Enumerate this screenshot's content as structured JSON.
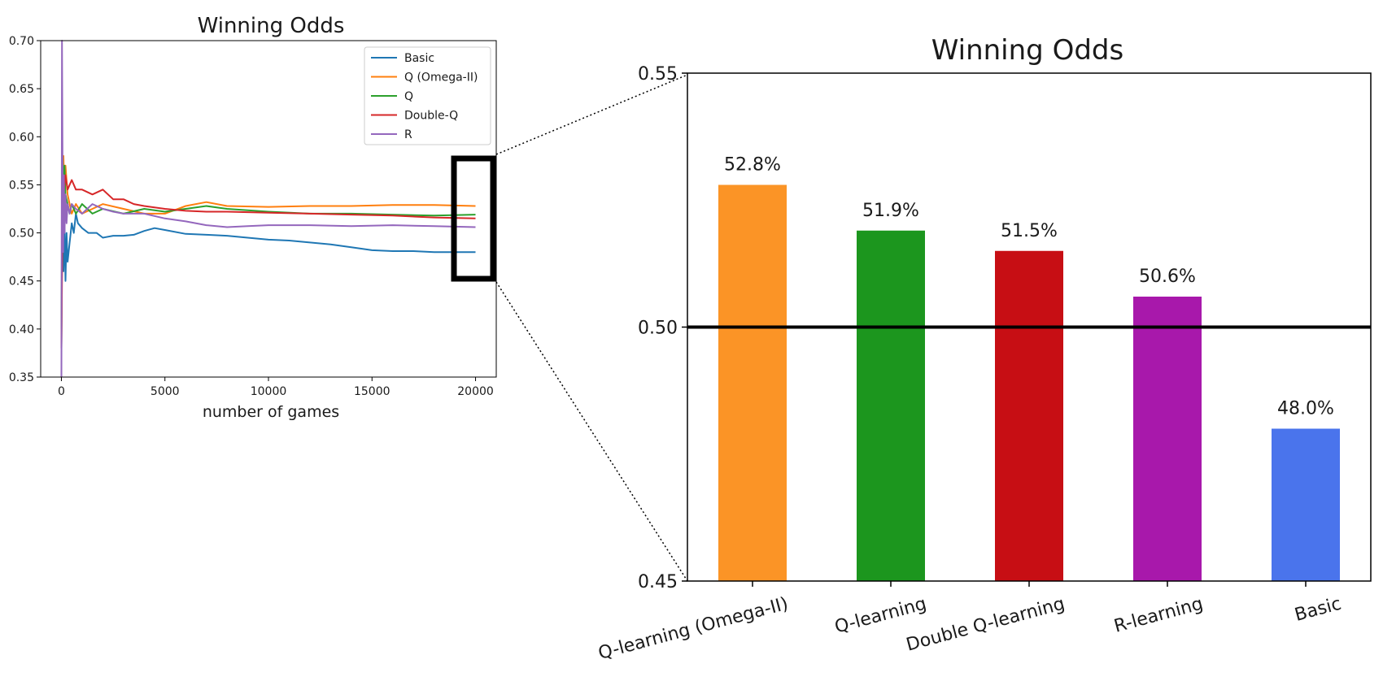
{
  "chart_data": [
    {
      "type": "line",
      "title": "Winning Odds",
      "xlabel": "number of games",
      "ylabel": "",
      "xlim": [
        -1000,
        21000
      ],
      "ylim": [
        0.35,
        0.7
      ],
      "xticks": [
        0,
        5000,
        10000,
        15000,
        20000
      ],
      "yticks": [
        "0.70",
        "0.65",
        "0.60",
        "0.55",
        "0.50",
        "0.45",
        "0.40",
        "0.35"
      ],
      "legend_position": "top-right",
      "grid": false,
      "series": [
        {
          "name": "Basic",
          "color": "#1f77b4",
          "x": [
            0,
            50,
            100,
            150,
            200,
            250,
            300,
            400,
            500,
            600,
            700,
            800,
            1000,
            1300,
            1700,
            2000,
            2500,
            3000,
            3500,
            4000,
            4500,
            5000,
            6000,
            7000,
            8000,
            9000,
            10000,
            11000,
            12000,
            13000,
            14000,
            15000,
            16000,
            17000,
            18000,
            19000,
            20000
          ],
          "y": [
            0.38,
            0.55,
            0.46,
            0.51,
            0.45,
            0.5,
            0.47,
            0.49,
            0.51,
            0.5,
            0.52,
            0.51,
            0.505,
            0.5,
            0.5,
            0.495,
            0.497,
            0.497,
            0.498,
            0.502,
            0.505,
            0.503,
            0.499,
            0.498,
            0.497,
            0.495,
            0.493,
            0.492,
            0.49,
            0.488,
            0.485,
            0.482,
            0.481,
            0.481,
            0.48,
            0.48,
            0.48
          ]
        },
        {
          "name": "Q (Omega-II)",
          "color": "#ff7f0e",
          "x": [
            0,
            50,
            100,
            150,
            200,
            300,
            400,
            500,
            700,
            1000,
            1500,
            2000,
            3000,
            4000,
            5000,
            6000,
            7000,
            8000,
            10000,
            12000,
            14000,
            16000,
            18000,
            20000
          ],
          "y": [
            0.38,
            0.55,
            0.58,
            0.53,
            0.57,
            0.54,
            0.53,
            0.52,
            0.53,
            0.52,
            0.525,
            0.53,
            0.525,
            0.52,
            0.52,
            0.528,
            0.532,
            0.528,
            0.527,
            0.528,
            0.528,
            0.529,
            0.529,
            0.528
          ]
        },
        {
          "name": "Q",
          "color": "#2ca02c",
          "x": [
            0,
            50,
            100,
            150,
            200,
            300,
            400,
            500,
            700,
            1000,
            1500,
            2000,
            3000,
            4000,
            5000,
            6000,
            7000,
            8000,
            10000,
            12000,
            14000,
            16000,
            18000,
            20000
          ],
          "y": [
            0.4,
            0.58,
            0.55,
            0.57,
            0.54,
            0.53,
            0.52,
            0.53,
            0.52,
            0.53,
            0.52,
            0.525,
            0.52,
            0.525,
            0.522,
            0.525,
            0.528,
            0.525,
            0.522,
            0.52,
            0.52,
            0.519,
            0.518,
            0.519
          ]
        },
        {
          "name": "Double-Q",
          "color": "#d62728",
          "x": [
            0,
            50,
            100,
            150,
            200,
            300,
            400,
            500,
            700,
            1000,
            1500,
            2000,
            2500,
            3000,
            3500,
            4000,
            5000,
            6000,
            7000,
            8000,
            10000,
            12000,
            14000,
            16000,
            18000,
            20000
          ],
          "y": [
            0.38,
            0.5,
            0.54,
            0.55,
            0.56,
            0.545,
            0.55,
            0.555,
            0.545,
            0.545,
            0.54,
            0.545,
            0.535,
            0.535,
            0.53,
            0.528,
            0.525,
            0.523,
            0.522,
            0.522,
            0.521,
            0.52,
            0.519,
            0.518,
            0.516,
            0.515
          ]
        },
        {
          "name": "R",
          "color": "#9467bd",
          "x": [
            0,
            30,
            60,
            90,
            120,
            150,
            200,
            250,
            300,
            400,
            500,
            700,
            1000,
            1500,
            2000,
            2500,
            3000,
            3500,
            4000,
            5000,
            6000,
            7000,
            8000,
            9000,
            10000,
            12000,
            14000,
            16000,
            18000,
            20000
          ],
          "y": [
            0.35,
            0.7,
            0.55,
            0.48,
            0.56,
            0.5,
            0.54,
            0.51,
            0.53,
            0.52,
            0.53,
            0.525,
            0.52,
            0.53,
            0.525,
            0.522,
            0.52,
            0.52,
            0.52,
            0.515,
            0.512,
            0.508,
            0.506,
            0.507,
            0.508,
            0.508,
            0.507,
            0.508,
            0.507,
            0.506
          ]
        }
      ]
    },
    {
      "type": "bar",
      "title": "Winning Odds",
      "xlabel": "",
      "ylabel": "",
      "ylim": [
        0.45,
        0.55
      ],
      "yticks": [
        "0.55",
        "0.50",
        "0.45"
      ],
      "reference_line": 0.5,
      "categories": [
        "Q-learning (Omega-II)",
        "Q-learning",
        "Double Q-learning",
        "R-learning",
        "Basic"
      ],
      "values": [
        0.528,
        0.519,
        0.515,
        0.506,
        0.48
      ],
      "value_labels": [
        "52.8%",
        "51.9%",
        "51.5%",
        "50.6%",
        "48.0%"
      ],
      "colors": [
        "#fb9426",
        "#1c961e",
        "#c70e14",
        "#a818ab",
        "#4a74ec"
      ]
    }
  ]
}
